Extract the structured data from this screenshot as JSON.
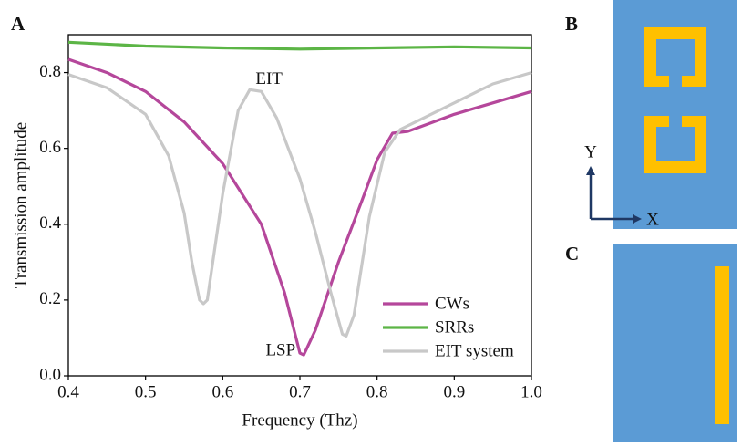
{
  "chart_data": {
    "type": "line",
    "panel_label": "A",
    "x_label": "Frequency (Thz)",
    "y_label": "Transmission amplitude",
    "xlim": [
      0.4,
      1.0
    ],
    "ylim": [
      0,
      0.9
    ],
    "xticks": [
      0.4,
      0.5,
      0.6,
      0.7,
      0.8,
      0.9,
      {
        "value": 1,
        "label": "1.0"
      }
    ],
    "yticks": [
      {
        "value": 0,
        "label": "0.0"
      },
      0.2,
      0.4,
      0.6,
      0.8
    ],
    "legend": "lower right",
    "annotations": [
      {
        "text": "EIT",
        "x": 0.66,
        "y": 0.78
      },
      {
        "text": "LSP",
        "x": 0.675,
        "y": 0.065
      }
    ],
    "series": [
      {
        "name": "CWs",
        "color": "#b5479b",
        "x": [
          0.4,
          0.45,
          0.5,
          0.55,
          0.6,
          0.65,
          0.68,
          0.7,
          0.705,
          0.72,
          0.75,
          0.78,
          0.8,
          0.82,
          0.84,
          0.86,
          0.9,
          0.95,
          1.0
        ],
        "values": [
          0.835,
          0.8,
          0.75,
          0.67,
          0.56,
          0.4,
          0.22,
          0.06,
          0.055,
          0.12,
          0.3,
          0.46,
          0.57,
          0.64,
          0.645,
          0.66,
          0.69,
          0.72,
          0.75
        ]
      },
      {
        "name": "SRRs",
        "color": "#5cb546",
        "x": [
          0.4,
          0.5,
          0.6,
          0.7,
          0.8,
          0.9,
          1.0
        ],
        "values": [
          0.88,
          0.87,
          0.865,
          0.862,
          0.865,
          0.868,
          0.865
        ]
      },
      {
        "name": "EIT system",
        "color": "#c8c8c8",
        "x": [
          0.4,
          0.45,
          0.5,
          0.53,
          0.55,
          0.56,
          0.57,
          0.575,
          0.58,
          0.6,
          0.62,
          0.635,
          0.65,
          0.67,
          0.7,
          0.72,
          0.74,
          0.755,
          0.76,
          0.77,
          0.79,
          0.81,
          0.83,
          0.86,
          0.9,
          0.95,
          1.0
        ],
        "values": [
          0.795,
          0.76,
          0.69,
          0.58,
          0.43,
          0.3,
          0.2,
          0.19,
          0.2,
          0.48,
          0.7,
          0.755,
          0.75,
          0.68,
          0.52,
          0.38,
          0.22,
          0.11,
          0.105,
          0.16,
          0.42,
          0.59,
          0.65,
          0.68,
          0.72,
          0.77,
          0.8
        ]
      }
    ]
  },
  "panels": {
    "b": {
      "label": "B",
      "axis_y": "Y",
      "axis_x": "X"
    },
    "c": {
      "label": "C"
    }
  }
}
